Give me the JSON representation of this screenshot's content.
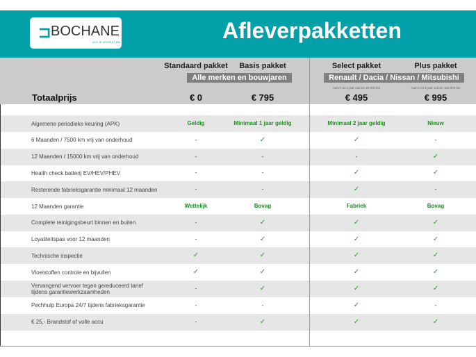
{
  "header": {
    "logo_text": "BOCHANE",
    "logo_tagline": "ALS JE VOORUIT WIL",
    "title": "Afleverpakketten"
  },
  "packages": [
    {
      "name": "Standaard pakket",
      "price": "€ 0",
      "note": ""
    },
    {
      "name": "Basis pakket",
      "price": "€ 795",
      "note": ""
    },
    {
      "name": "Select pakket",
      "price": "€ 495",
      "note": "Auto's tot 1 jaar oud en 20.000 km"
    },
    {
      "name": "Plus pakket",
      "price": "€ 995",
      "note": "Auto's tot 5 jaar oud en 100.000 km"
    }
  ],
  "groups": {
    "left": "Alle merken en bouwjaren",
    "right": "Renault / Dacia / Nissan / Mitsubishi"
  },
  "total_label": "Totaalprijs",
  "colors": {
    "brand": "#02a0a9",
    "check": "#2a9a2a"
  },
  "rows": [
    {
      "label": "Algemene periodieke keuring (APK)",
      "values": [
        "Geldig",
        "Minimaal 1 jaar geldig",
        "Minimaal 2 jaar geldig",
        "Nieuw"
      ]
    },
    {
      "label": "6 Maanden / 7500 km vrij van onderhoud",
      "values": [
        "-",
        "✓",
        "✓",
        "-"
      ]
    },
    {
      "label": "12 Maanden / 15000 km vrij van onderhoud",
      "values": [
        "-",
        "-",
        "-",
        "✓"
      ]
    },
    {
      "label": "Health check batterij EV/HEV/PHEV",
      "values": [
        "-",
        "-",
        "✓",
        "✓"
      ]
    },
    {
      "label": "Resterende fabrieksgarantie minimaal 12 maanden",
      "values": [
        "-",
        "-",
        "✓",
        "-"
      ]
    },
    {
      "label": "12 Maanden  garantie",
      "values": [
        "Wettelijk",
        "Bovag",
        "Fabriek",
        "Bovag"
      ]
    },
    {
      "label": "Complete reinigingsbeurt binnen en buiten",
      "values": [
        "-",
        "✓",
        "✓",
        "✓"
      ]
    },
    {
      "label": "Loyaliteitspas voor 12 maanden",
      "values": [
        "-",
        "✓",
        "✓",
        "✓"
      ]
    },
    {
      "label": "Technische inspectie",
      "values": [
        "✓",
        "✓",
        "✓",
        "✓"
      ]
    },
    {
      "label": "Vloeistoffen controle en bijvullen",
      "values": [
        "✓",
        "✓",
        "✓",
        "✓"
      ]
    },
    {
      "label": "Vervangend vervoer tegen gereduceerd tarief tijdens garantiewerkzaamheden",
      "values": [
        "-",
        "✓",
        "✓",
        "✓"
      ]
    },
    {
      "label": "Pechhulp Europa 24/7 tijdens fabrieksgarantie",
      "values": [
        "-",
        "-",
        "✓",
        "-"
      ]
    },
    {
      "label": "€ 25,- Brandstof of  volle accu",
      "values": [
        "-",
        "✓",
        "✓",
        "✓"
      ]
    }
  ]
}
